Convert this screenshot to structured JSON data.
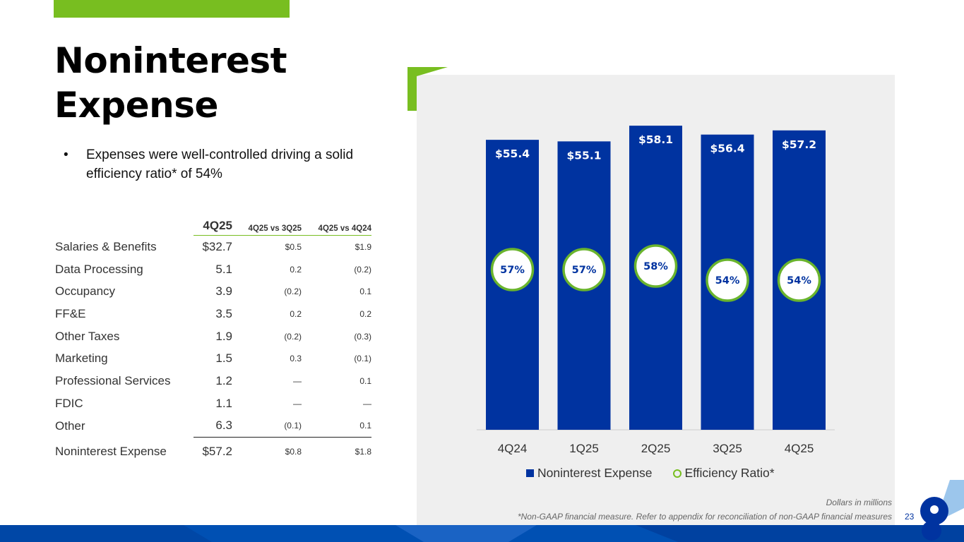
{
  "title": {
    "line1": "Noninterest",
    "line2": "Expense"
  },
  "bullet": {
    "marker": "•",
    "text": "Expenses were well-controlled driving a solid efficiency ratio* of 54%"
  },
  "table": {
    "headers": {
      "label": "",
      "q": "4Q25",
      "vs_prev": "4Q25 vs 3Q25",
      "vs_year": "4Q25 vs 4Q24"
    },
    "rows": [
      {
        "label": "Salaries & Benefits",
        "q": "$32.7",
        "vs_prev": "$0.5",
        "vs_year": "$1.9"
      },
      {
        "label": "Data Processing",
        "q": "5.1",
        "vs_prev": "0.2",
        "vs_year": "(0.2)"
      },
      {
        "label": "Occupancy",
        "q": "3.9",
        "vs_prev": "(0.2)",
        "vs_year": "0.1"
      },
      {
        "label": "FF&E",
        "q": "3.5",
        "vs_prev": "0.2",
        "vs_year": "0.2"
      },
      {
        "label": "Other Taxes",
        "q": "1.9",
        "vs_prev": "(0.2)",
        "vs_year": "(0.3)"
      },
      {
        "label": "Marketing",
        "q": "1.5",
        "vs_prev": "0.3",
        "vs_year": "(0.1)"
      },
      {
        "label": "Professional Services",
        "q": "1.2",
        "vs_prev": "—",
        "vs_year": "0.1"
      },
      {
        "label": "FDIC",
        "q": "1.1",
        "vs_prev": "—",
        "vs_year": "—"
      },
      {
        "label": "Other",
        "q": "6.3",
        "vs_prev": "(0.1)",
        "vs_year": "0.1"
      }
    ],
    "total": {
      "label": "Noninterest Expense",
      "q": "$57.2",
      "vs_prev": "$0.8",
      "vs_year": "$1.8"
    }
  },
  "chart_data": {
    "type": "bar",
    "categories": [
      "4Q24",
      "1Q25",
      "2Q25",
      "3Q25",
      "4Q25"
    ],
    "series": [
      {
        "name": "Noninterest Expense",
        "values": [
          55.4,
          55.1,
          58.1,
          56.4,
          57.2
        ],
        "labels": [
          "$55.4",
          "$55.1",
          "$58.1",
          "$56.4",
          "$57.2"
        ]
      },
      {
        "name": "Efficiency Ratio*",
        "values": [
          57,
          57,
          58,
          54,
          54
        ],
        "labels": [
          "57%",
          "57%",
          "58%",
          "54%",
          "54%"
        ]
      }
    ],
    "ylim": [
      0,
      60
    ]
  },
  "legend": {
    "bar": "Noninterest Expense",
    "ratio": "Efficiency Ratio*"
  },
  "notes": {
    "units": "Dollars in millions",
    "footnote": "*Non-GAAP financial measure. Refer to appendix for reconciliation of non-GAAP financial measures"
  },
  "page_number": "23",
  "colors": {
    "accent": "#78be20",
    "brand": "#0033a0"
  }
}
